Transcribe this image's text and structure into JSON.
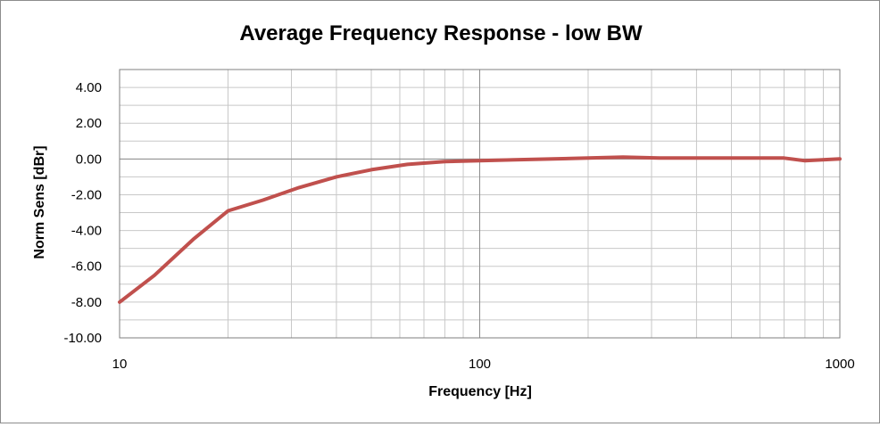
{
  "chart_data": {
    "type": "line",
    "title": "Average Frequency Response - low BW",
    "xlabel": "Frequency [Hz]",
    "ylabel": "Norm Sens [dBr]",
    "x_scale": "log",
    "xlim": [
      10,
      1000
    ],
    "ylim": [
      -10,
      5
    ],
    "x_tick_labels": [
      "10",
      "100",
      "1000"
    ],
    "y_tick_labels": [
      "4.00",
      "2.00",
      "0.00",
      "-2.00",
      "-4.00",
      "-6.00",
      "-8.00",
      "-10.00"
    ],
    "grid": true,
    "legend": "none",
    "series": [
      {
        "color": "#c0504d",
        "x": [
          10,
          12.5,
          16,
          20,
          25,
          31.5,
          40,
          50,
          63,
          80,
          100,
          125,
          160,
          200,
          250,
          315,
          400,
          500,
          630,
          700,
          800,
          1000
        ],
        "y": [
          -8.0,
          -6.5,
          -4.5,
          -2.9,
          -2.3,
          -1.6,
          -1.0,
          -0.6,
          -0.3,
          -0.15,
          -0.1,
          -0.05,
          0.0,
          0.05,
          0.1,
          0.05,
          0.05,
          0.05,
          0.05,
          0.05,
          -0.1,
          0.0
        ]
      }
    ]
  }
}
